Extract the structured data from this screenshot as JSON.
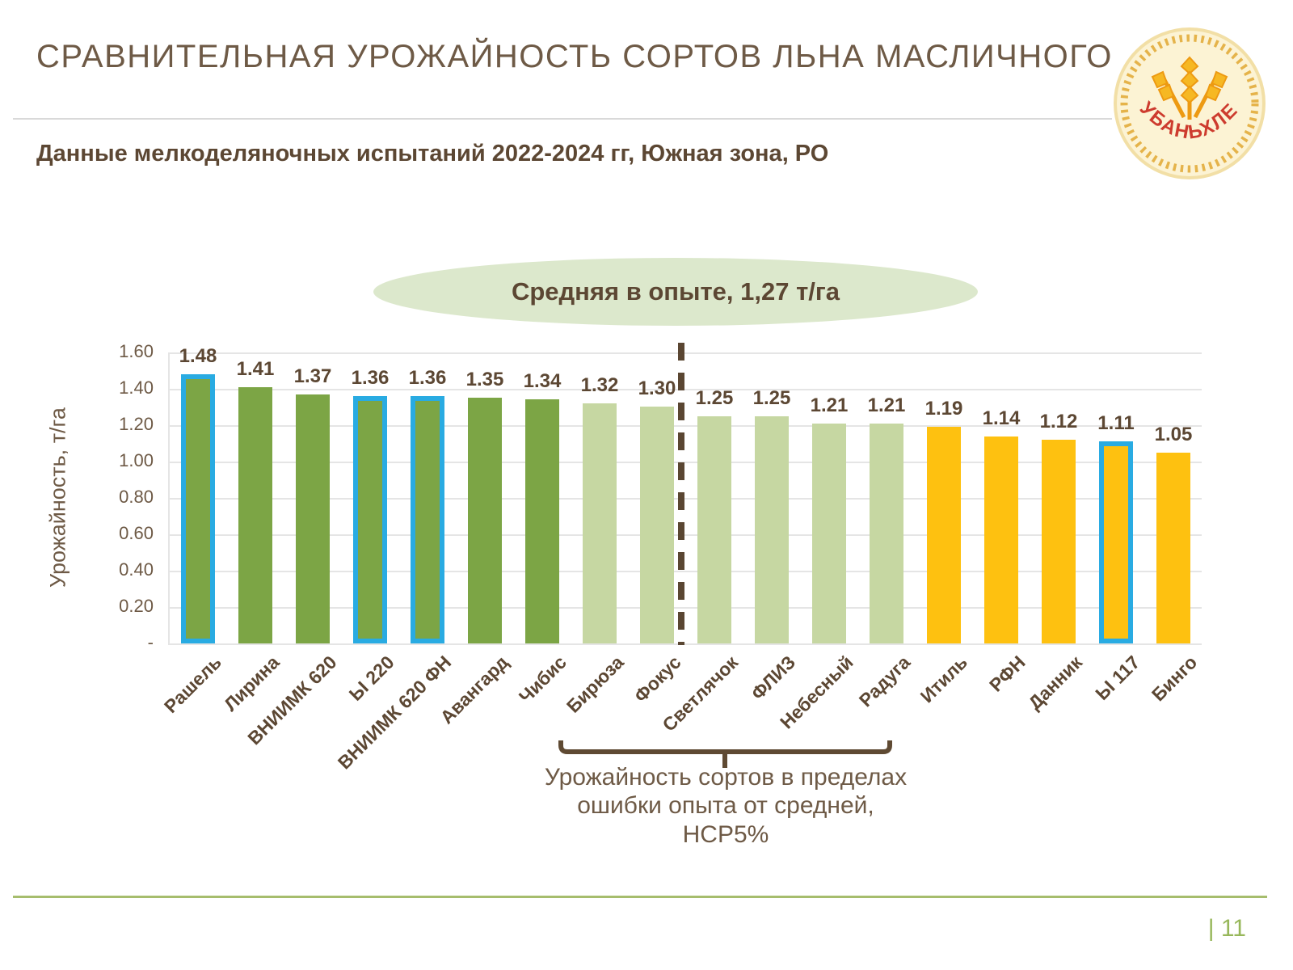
{
  "slide": {
    "title": "СРАВНИТЕЛЬНАЯ УРОЖАЙНОСТЬ СОРТОВ ЛЬНА МАСЛИЧНОГО",
    "subtitle": "Данные мелкоделяночных испытаний 2022-2024 гг, Южная зона, РО",
    "page_number": "| 11",
    "logo_text": "КУБАНЬХЛЕБ",
    "colors": {
      "title_brown": "#6E5A46",
      "text_brown_bold": "#5C4733",
      "bottom_line_green": "#A6BD6D",
      "page_number_green": "#97B75A",
      "separator_gray": "#D9D9D9"
    }
  },
  "annotations": {
    "average_badge": "Средняя в опыте, 1,27 т/га",
    "average_badge_fill": "#DCE8CC",
    "bracket_note": "Урожайность сортов в пределах ошибки опыта от средней, НСР5%"
  },
  "chart_data": {
    "type": "bar",
    "title": "",
    "xlabel": "",
    "ylabel": "Урожайность, т/га",
    "ylim": [
      0,
      1.6
    ],
    "ytick_step": 0.2,
    "ytick_labels_top_down": [
      "1.60",
      "1.40",
      "1.20",
      "1.00",
      "0.80",
      "0.60",
      "0.40",
      "0.20",
      "-"
    ],
    "grid": true,
    "categories": [
      "Рашель",
      "Лирина",
      "ВНИИМК 620",
      "Ы 220",
      "ВНИИМК 620 ФН",
      "Авангард",
      "Чибис",
      "Бирюза",
      "Фокус",
      "Светлячок",
      "ФЛИЗ",
      "Небесный",
      "Радуга",
      "Итиль",
      "РФН",
      "Данник",
      "Ы 117",
      "Бинго"
    ],
    "values": [
      1.48,
      1.41,
      1.37,
      1.36,
      1.36,
      1.35,
      1.34,
      1.32,
      1.3,
      1.25,
      1.25,
      1.21,
      1.21,
      1.19,
      1.14,
      1.12,
      1.11,
      1.05
    ],
    "bar_groups": [
      "dark_green",
      "dark_green",
      "dark_green",
      "dark_green",
      "dark_green",
      "dark_green",
      "dark_green",
      "light_green",
      "light_green",
      "light_green",
      "light_green",
      "light_green",
      "light_green",
      "yellow",
      "yellow",
      "yellow",
      "yellow",
      "yellow"
    ],
    "bar_colors_by_group": {
      "dark_green": "#7CA545",
      "light_green": "#C6D7A2",
      "yellow": "#FEC110"
    },
    "highlighted_bars": [
      "Рашель",
      "Ы 220",
      "ВНИИМК 620 ФН",
      "Ы 117"
    ],
    "highlight_outline_color": "#29ABE2",
    "divider_between": [
      "Фокус",
      "Светлячок"
    ],
    "divider_color": "#5A4632",
    "average_in_experiment": "1,27 т/га",
    "legend_position": "none"
  }
}
